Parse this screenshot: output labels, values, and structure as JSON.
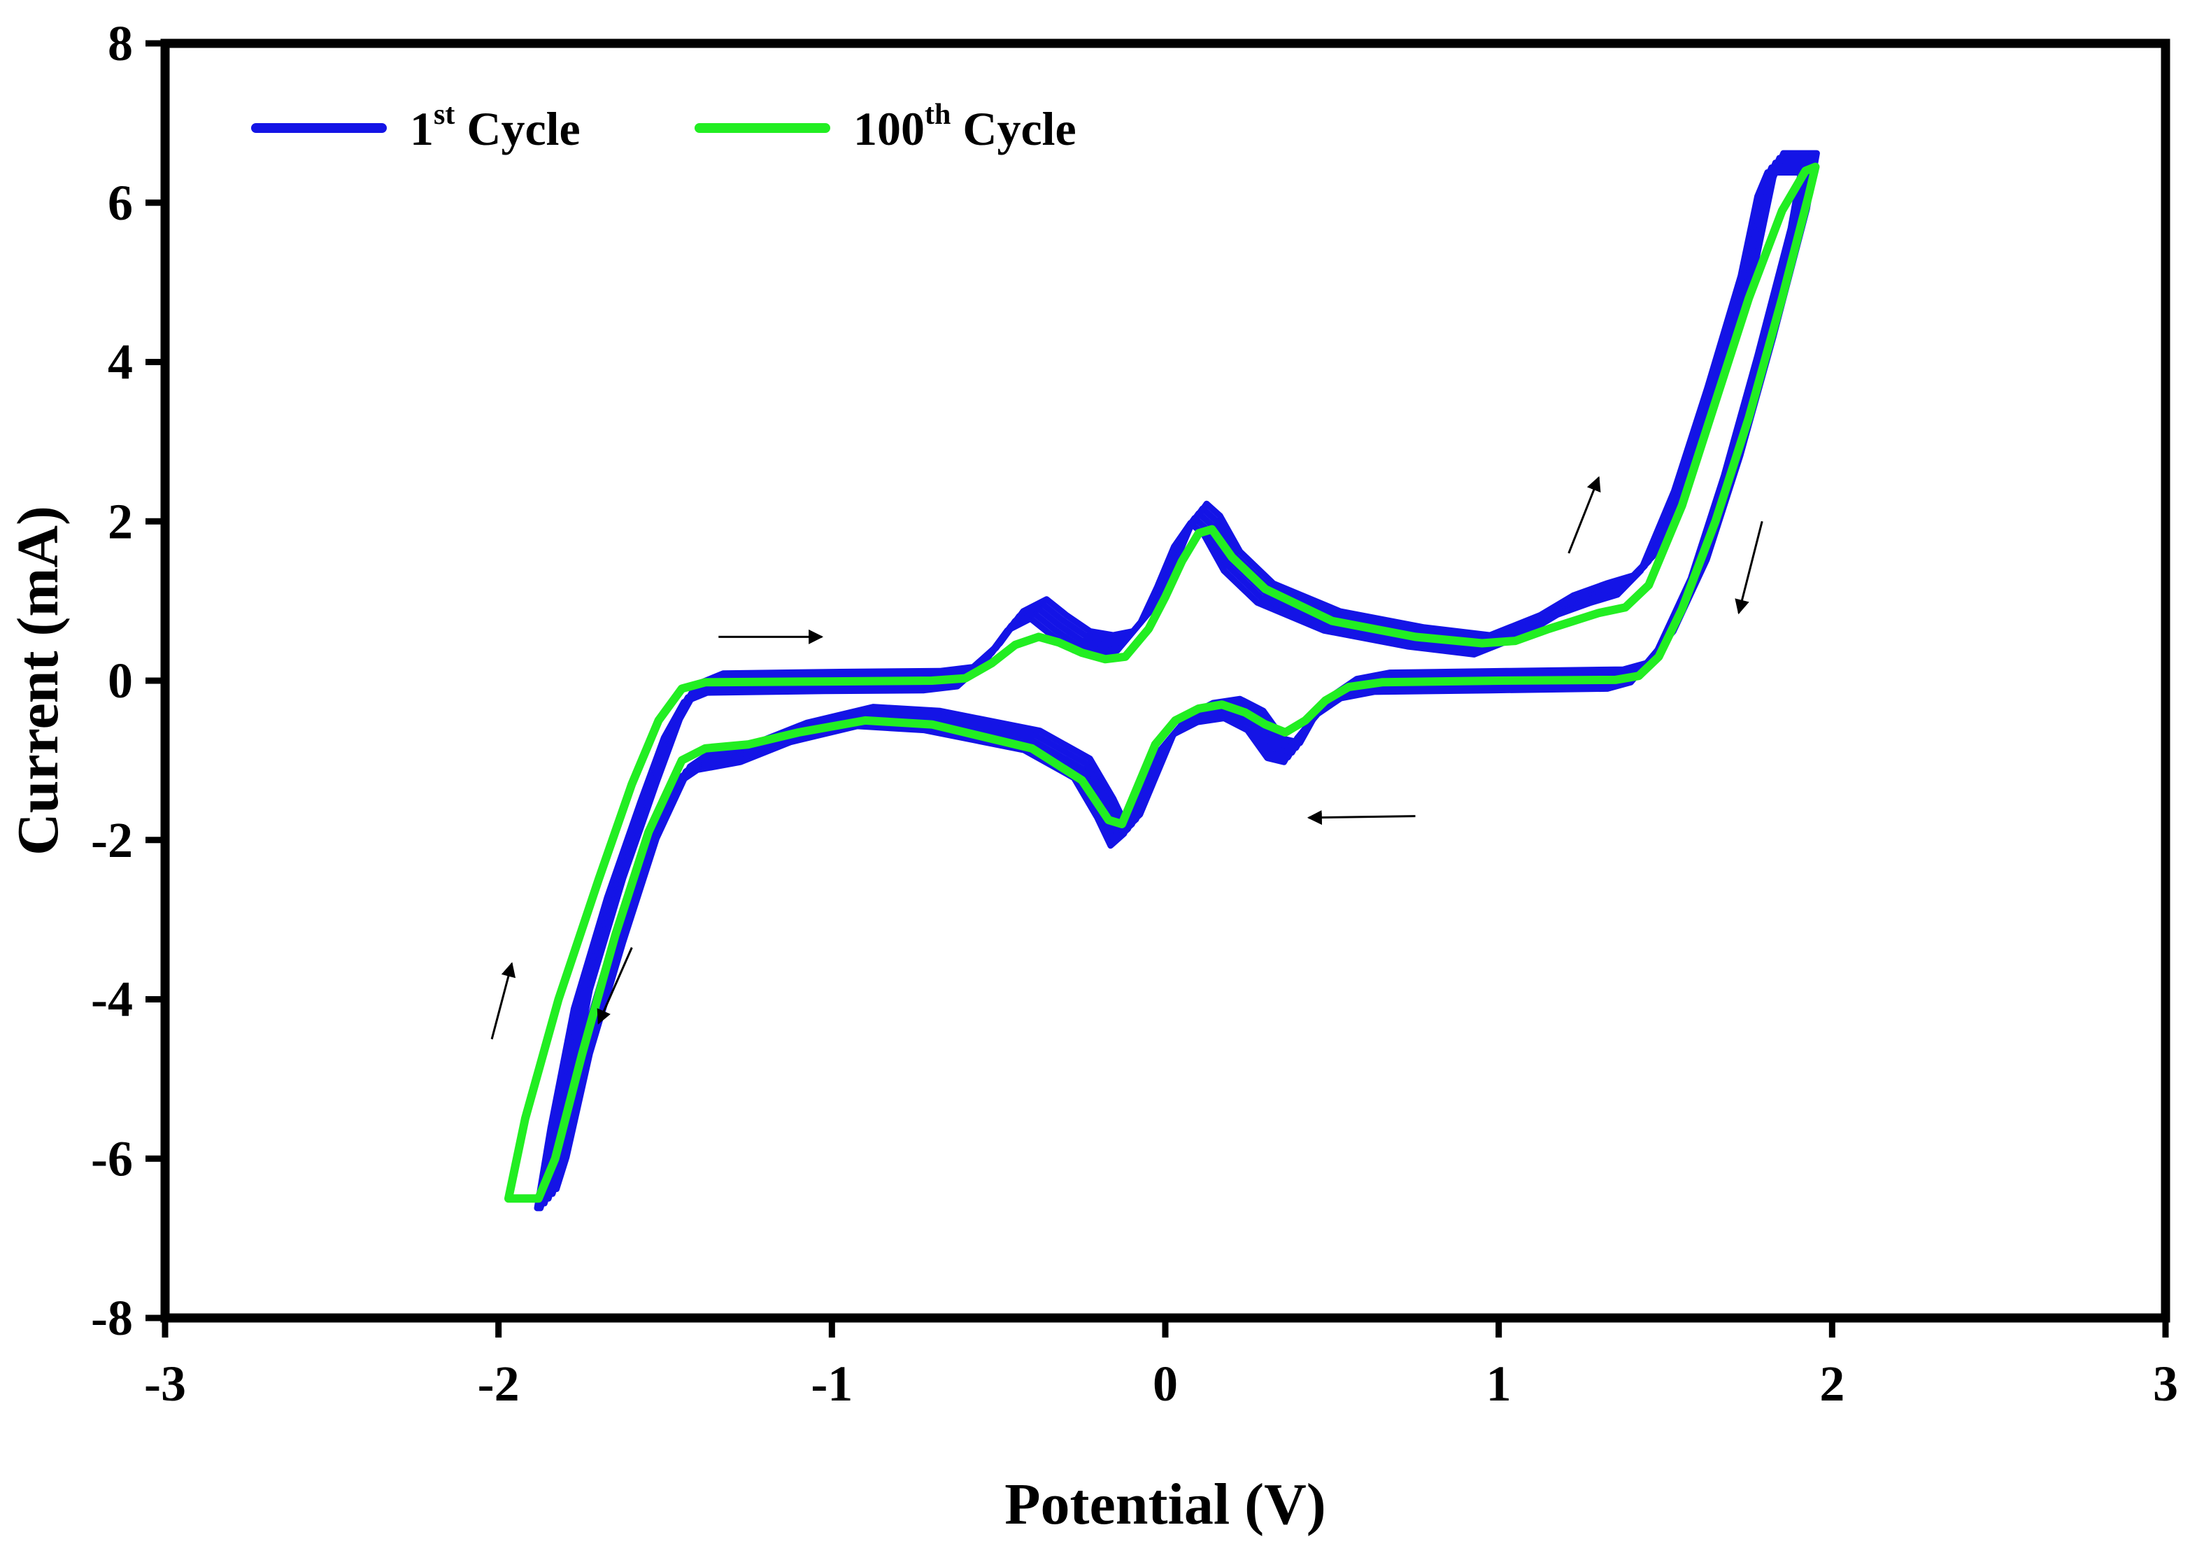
{
  "chart_data": {
    "type": "line",
    "title": "",
    "xlabel": "Potential (V)",
    "ylabel": "Current (mA)",
    "xlim": [
      -3,
      3
    ],
    "ylim": [
      -8,
      8
    ],
    "xticks": [
      -3,
      -2,
      -1,
      0,
      1,
      2,
      3
    ],
    "yticks": [
      -8,
      -6,
      -4,
      -2,
      0,
      2,
      4,
      6,
      8
    ],
    "xtick_labels": [
      "-3",
      "-2",
      "-1",
      "0",
      "1",
      "2",
      "3"
    ],
    "ytick_labels": [
      "-8",
      "-6",
      "-4",
      "-2",
      "0",
      "2",
      "4",
      "6",
      "8"
    ],
    "grid": false,
    "legend_position": "top-left",
    "series": [
      {
        "name": "1st Cycle",
        "legend_main": "1",
        "legend_sup": "st",
        "legend_tail": " Cycle",
        "color": "#1414e6",
        "cycles": 5,
        "forward": [
          [
            -1.86,
            -6.5
          ],
          [
            -1.82,
            -5.5
          ],
          [
            -1.75,
            -4.0
          ],
          [
            -1.65,
            -2.6
          ],
          [
            -1.55,
            -1.4
          ],
          [
            -1.48,
            -0.6
          ],
          [
            -1.42,
            -0.15
          ],
          [
            -1.35,
            -0.03
          ],
          [
            -1.0,
            -0.01
          ],
          [
            -0.7,
            0.0
          ],
          [
            -0.6,
            0.05
          ],
          [
            -0.52,
            0.35
          ],
          [
            -0.45,
            0.75
          ],
          [
            -0.38,
            0.9
          ],
          [
            -0.32,
            0.7
          ],
          [
            -0.25,
            0.5
          ],
          [
            -0.18,
            0.45
          ],
          [
            -0.12,
            0.5
          ],
          [
            -0.05,
            0.85
          ],
          [
            0.0,
            1.3
          ],
          [
            0.05,
            1.8
          ],
          [
            0.1,
            2.1
          ],
          [
            0.14,
            1.95
          ],
          [
            0.2,
            1.5
          ],
          [
            0.3,
            1.1
          ],
          [
            0.5,
            0.75
          ],
          [
            0.75,
            0.55
          ],
          [
            0.95,
            0.45
          ],
          [
            1.1,
            0.7
          ],
          [
            1.2,
            0.95
          ],
          [
            1.3,
            1.1
          ],
          [
            1.38,
            1.2
          ],
          [
            1.45,
            1.5
          ],
          [
            1.55,
            2.5
          ],
          [
            1.65,
            3.8
          ],
          [
            1.75,
            5.2
          ],
          [
            1.8,
            6.2
          ],
          [
            1.83,
            6.5
          ]
        ],
        "backward": [
          [
            1.93,
            6.5
          ],
          [
            1.9,
            5.8
          ],
          [
            1.8,
            4.2
          ],
          [
            1.7,
            2.7
          ],
          [
            1.6,
            1.4
          ],
          [
            1.5,
            0.5
          ],
          [
            1.42,
            0.1
          ],
          [
            1.35,
            0.02
          ],
          [
            1.0,
            0.0
          ],
          [
            0.65,
            -0.02
          ],
          [
            0.55,
            -0.1
          ],
          [
            0.48,
            -0.3
          ],
          [
            0.42,
            -0.6
          ],
          [
            0.38,
            -0.9
          ],
          [
            0.33,
            -0.85
          ],
          [
            0.27,
            -0.5
          ],
          [
            0.2,
            -0.35
          ],
          [
            0.12,
            -0.4
          ],
          [
            0.05,
            -0.55
          ],
          [
            0.0,
            -0.8
          ],
          [
            -0.06,
            -1.4
          ],
          [
            -0.1,
            -1.8
          ],
          [
            -0.14,
            -1.95
          ],
          [
            -0.18,
            -1.6
          ],
          [
            -0.25,
            -1.1
          ],
          [
            -0.4,
            -0.75
          ],
          [
            -0.7,
            -0.5
          ],
          [
            -0.9,
            -0.45
          ],
          [
            -1.1,
            -0.65
          ],
          [
            -1.25,
            -0.9
          ],
          [
            -1.38,
            -1.0
          ],
          [
            -1.45,
            -1.2
          ],
          [
            -1.55,
            -2.1
          ],
          [
            -1.65,
            -3.4
          ],
          [
            -1.75,
            -4.8
          ],
          [
            -1.82,
            -6.1
          ],
          [
            -1.85,
            -6.5
          ]
        ]
      },
      {
        "name": "100th Cycle",
        "legend_main": "100",
        "legend_sup": "th",
        "legend_tail": " Cycle",
        "color": "#22ee22",
        "cycles": 1,
        "forward": [
          [
            -1.97,
            -6.5
          ],
          [
            -1.92,
            -5.5
          ],
          [
            -1.82,
            -4.0
          ],
          [
            -1.7,
            -2.5
          ],
          [
            -1.6,
            -1.3
          ],
          [
            -1.52,
            -0.5
          ],
          [
            -1.45,
            -0.1
          ],
          [
            -1.38,
            -0.02
          ],
          [
            -1.0,
            -0.01
          ],
          [
            -0.7,
            0.0
          ],
          [
            -0.6,
            0.03
          ],
          [
            -0.52,
            0.22
          ],
          [
            -0.45,
            0.45
          ],
          [
            -0.38,
            0.55
          ],
          [
            -0.32,
            0.48
          ],
          [
            -0.25,
            0.35
          ],
          [
            -0.18,
            0.27
          ],
          [
            -0.12,
            0.3
          ],
          [
            -0.05,
            0.65
          ],
          [
            0.0,
            1.05
          ],
          [
            0.05,
            1.5
          ],
          [
            0.1,
            1.85
          ],
          [
            0.14,
            1.9
          ],
          [
            0.2,
            1.55
          ],
          [
            0.3,
            1.15
          ],
          [
            0.5,
            0.75
          ],
          [
            0.75,
            0.55
          ],
          [
            0.95,
            0.47
          ],
          [
            1.05,
            0.5
          ],
          [
            1.15,
            0.65
          ],
          [
            1.3,
            0.85
          ],
          [
            1.38,
            0.92
          ],
          [
            1.45,
            1.2
          ],
          [
            1.55,
            2.2
          ],
          [
            1.65,
            3.5
          ],
          [
            1.75,
            4.8
          ],
          [
            1.85,
            5.9
          ],
          [
            1.92,
            6.4
          ]
        ],
        "backward": [
          [
            1.95,
            6.45
          ],
          [
            1.93,
            6.1
          ],
          [
            1.85,
            4.8
          ],
          [
            1.75,
            3.3
          ],
          [
            1.65,
            2.0
          ],
          [
            1.55,
            0.9
          ],
          [
            1.48,
            0.3
          ],
          [
            1.42,
            0.06
          ],
          [
            1.35,
            0.01
          ],
          [
            1.0,
            0.0
          ],
          [
            0.65,
            -0.02
          ],
          [
            0.55,
            -0.08
          ],
          [
            0.48,
            -0.25
          ],
          [
            0.42,
            -0.5
          ],
          [
            0.36,
            -0.65
          ],
          [
            0.3,
            -0.55
          ],
          [
            0.24,
            -0.4
          ],
          [
            0.17,
            -0.3
          ],
          [
            0.1,
            -0.35
          ],
          [
            0.03,
            -0.5
          ],
          [
            -0.03,
            -0.8
          ],
          [
            -0.08,
            -1.3
          ],
          [
            -0.13,
            -1.8
          ],
          [
            -0.17,
            -1.75
          ],
          [
            -0.25,
            -1.25
          ],
          [
            -0.4,
            -0.85
          ],
          [
            -0.7,
            -0.55
          ],
          [
            -0.9,
            -0.5
          ],
          [
            -1.1,
            -0.65
          ],
          [
            -1.25,
            -0.8
          ],
          [
            -1.38,
            -0.85
          ],
          [
            -1.45,
            -1.0
          ],
          [
            -1.55,
            -1.9
          ],
          [
            -1.65,
            -3.2
          ],
          [
            -1.75,
            -4.7
          ],
          [
            -1.83,
            -6.0
          ],
          [
            -1.88,
            -6.5
          ]
        ]
      }
    ],
    "annotations": [
      {
        "type": "arrow",
        "direction": "right",
        "from": [
          -1.34,
          0.55
        ],
        "to": [
          -1.03,
          0.55
        ]
      },
      {
        "type": "arrow",
        "direction": "up",
        "from": [
          1.21,
          1.6
        ],
        "to": [
          1.3,
          2.55
        ]
      },
      {
        "type": "arrow",
        "direction": "down",
        "from": [
          1.79,
          2.0
        ],
        "to": [
          1.72,
          0.85
        ]
      },
      {
        "type": "arrow",
        "direction": "left",
        "from": [
          0.75,
          -1.7
        ],
        "to": [
          0.43,
          -1.72
        ]
      },
      {
        "type": "arrow",
        "direction": "down",
        "from": [
          -1.6,
          -3.35
        ],
        "to": [
          -1.7,
          -4.3
        ]
      },
      {
        "type": "arrow",
        "direction": "up",
        "from": [
          -2.02,
          -4.5
        ],
        "to": [
          -1.96,
          -3.55
        ]
      }
    ]
  }
}
